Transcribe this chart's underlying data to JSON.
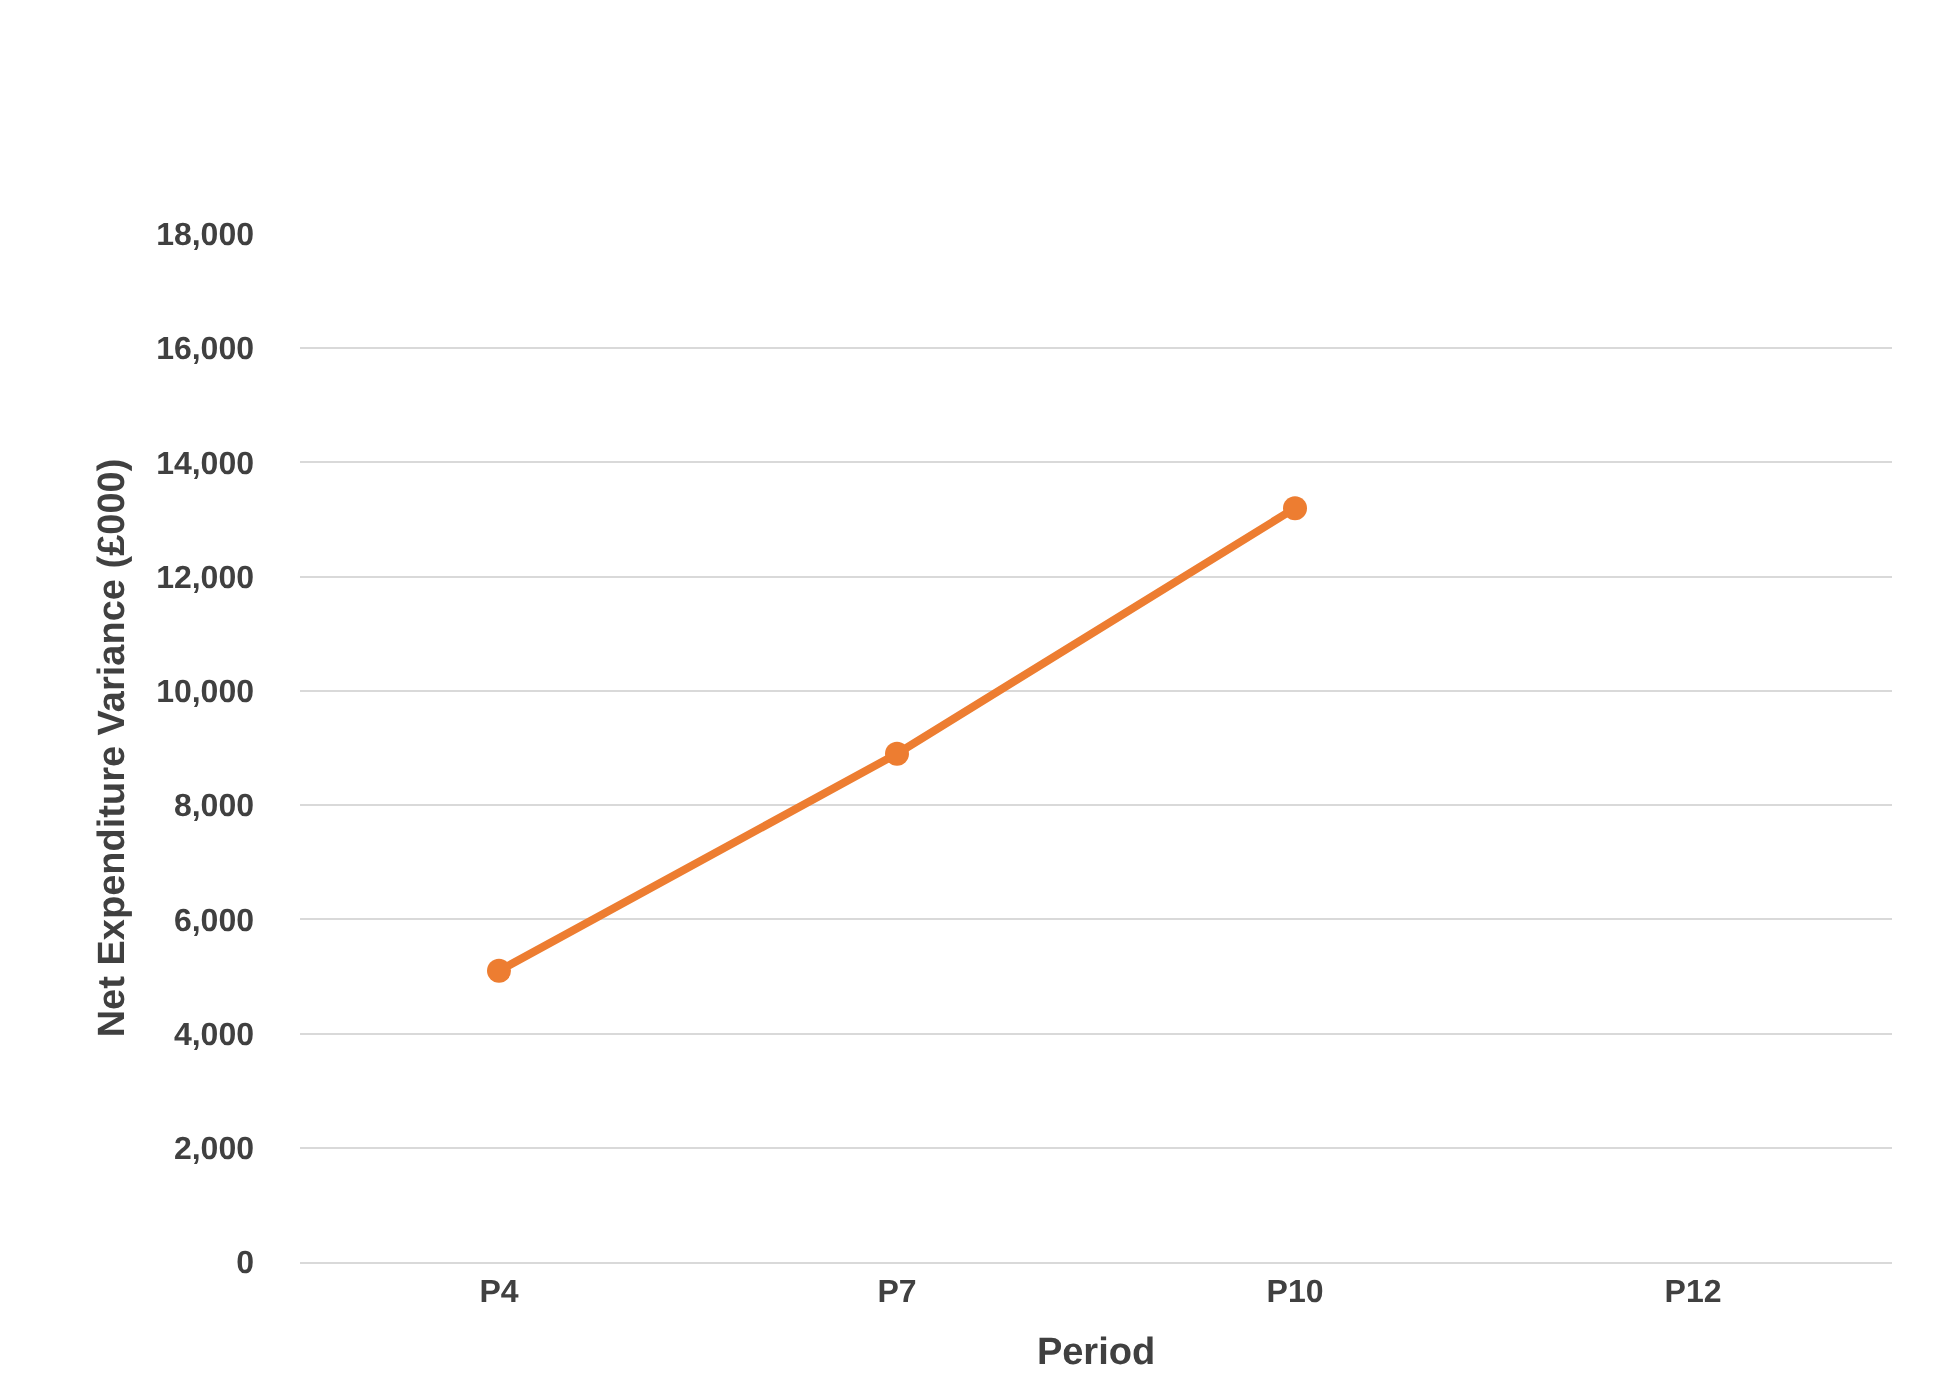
{
  "chart_data": {
    "type": "line",
    "xlabel": "Period",
    "ylabel": "Net Expenditure Variance (£000)",
    "categories": [
      "P4",
      "P7",
      "P10",
      "P12"
    ],
    "series": [
      {
        "color": "#ed7d31",
        "values": [
          5100,
          8900,
          13200,
          null
        ]
      }
    ],
    "ylim": [
      0,
      18000
    ],
    "yticks": [
      {
        "value": 0,
        "label": "0"
      },
      {
        "value": 2000,
        "label": "2,000"
      },
      {
        "value": 4000,
        "label": "4,000"
      },
      {
        "value": 6000,
        "label": "6,000"
      },
      {
        "value": 8000,
        "label": "8,000"
      },
      {
        "value": 10000,
        "label": "10,000"
      },
      {
        "value": 12000,
        "label": "12,000"
      },
      {
        "value": 14000,
        "label": "14,000"
      },
      {
        "value": 16000,
        "label": "16,000"
      },
      {
        "value": 18000,
        "label": "18,000"
      }
    ],
    "grid": "y",
    "marker": "circle",
    "line_style": "solid"
  }
}
